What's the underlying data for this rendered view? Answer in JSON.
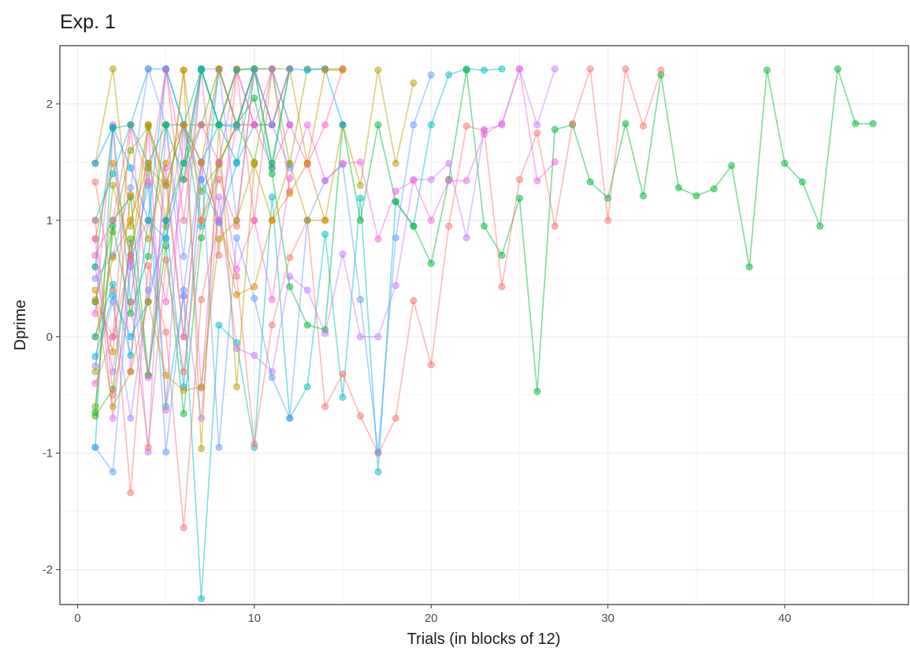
{
  "chart_data": {
    "type": "line",
    "title": "Exp. 1",
    "xlabel": "Trials (in blocks of 12)",
    "ylabel": "Dprime",
    "xlim": [
      -1,
      47
    ],
    "ylim": [
      -2.3,
      2.5
    ],
    "x_ticks": [
      0,
      10,
      20,
      30,
      40
    ],
    "y_ticks": [
      -2,
      -1,
      0,
      1,
      2
    ],
    "grid": true,
    "legend": "none",
    "markers": true,
    "series": [
      {
        "color": "#00BFC4",
        "x": [
          1,
          2,
          3,
          4,
          5,
          6,
          7,
          8,
          9,
          10,
          11,
          12,
          13,
          14,
          15,
          16,
          17,
          18,
          19,
          20,
          21,
          22,
          23,
          24
        ],
        "y": [
          -0.95,
          1.8,
          0.3,
          1.45,
          -0.6,
          0.35,
          -2.25,
          0.1,
          -0.05,
          -0.95,
          1.2,
          -0.7,
          -0.43,
          0.88,
          -0.52,
          1.19,
          -1.16,
          1.16,
          0.95,
          1.82,
          2.25,
          2.3,
          2.29,
          2.3
        ]
      },
      {
        "color": "#00BA38",
        "x": [
          1,
          2,
          3,
          4,
          5,
          6,
          7,
          8,
          9,
          10,
          11,
          12,
          13,
          14,
          15,
          16,
          17,
          18,
          19,
          20,
          21,
          22,
          23,
          24,
          25,
          26,
          27,
          28,
          29,
          30,
          31,
          32,
          33,
          34,
          35,
          36,
          37,
          38,
          39,
          40,
          41,
          42,
          43,
          44,
          45
        ],
        "y": [
          -0.65,
          1.0,
          1.2,
          -0.33,
          0.78,
          -0.66,
          0.85,
          1.49,
          1.82,
          2.05,
          1.4,
          0.43,
          0.1,
          0.06,
          1.82,
          1.0,
          1.82,
          1.16,
          0.95,
          0.63,
          1.35,
          2.29,
          0.95,
          0.7,
          1.19,
          -0.47,
          1.78,
          1.82,
          1.33,
          1.19,
          1.83,
          1.21,
          2.25,
          1.28,
          1.21,
          1.27,
          1.47,
          0.6,
          2.29,
          1.49,
          1.33,
          0.95,
          2.3,
          1.83,
          1.83
        ]
      },
      {
        "color": "#F8766D",
        "x": [
          1,
          2,
          3,
          4,
          5,
          6,
          7,
          8,
          9,
          10,
          11,
          12,
          13,
          14,
          15,
          16,
          17,
          18,
          19,
          20,
          21,
          22,
          23,
          24,
          25,
          26,
          27,
          28,
          29,
          30,
          31,
          32,
          33
        ],
        "y": [
          1.33,
          0.4,
          -1.34,
          0.61,
          0.04,
          -1.64,
          0.32,
          1.0,
          0.52,
          -0.92,
          0.1,
          0.68,
          1.0,
          -0.6,
          -0.32,
          -0.68,
          -1.0,
          -0.7,
          0.31,
          -0.24,
          0.95,
          1.81,
          1.77,
          0.43,
          1.35,
          1.75,
          0.95,
          1.83,
          2.3,
          1.0,
          2.3,
          1.81,
          2.29
        ]
      },
      {
        "color": "#C77CFF",
        "x": [
          1,
          2,
          3,
          4,
          5,
          6,
          7,
          8,
          9,
          10,
          11,
          12,
          13,
          14,
          15,
          16,
          17,
          18,
          19,
          20,
          21,
          22,
          23,
          24,
          25,
          26,
          27
        ],
        "y": [
          0.6,
          -0.3,
          0.8,
          -0.99,
          1.82,
          0.35,
          -0.7,
          1.2,
          -0.1,
          -0.16,
          -0.3,
          0.52,
          0.4,
          0.03,
          0.71,
          0.0,
          0.0,
          0.44,
          1.35,
          1.35,
          1.49,
          0.85,
          1.78,
          1.82,
          2.3,
          1.82,
          2.3
        ]
      },
      {
        "color": "#619CFF",
        "x": [
          1,
          2,
          3,
          4,
          5,
          6,
          7,
          8,
          9,
          10,
          11,
          12,
          13,
          14,
          15,
          16,
          17,
          18,
          19,
          20
        ],
        "y": [
          -0.95,
          -1.16,
          0.6,
          1.3,
          -0.99,
          0.4,
          1.5,
          -0.95,
          0.85,
          0.33,
          -0.35,
          -0.7,
          1.0,
          1.34,
          1.48,
          0.32,
          -0.99,
          0.85,
          1.82,
          2.25
        ]
      },
      {
        "color": "#F564E3",
        "x": [
          1,
          2,
          3,
          4,
          5,
          6,
          7,
          8,
          9,
          10,
          11,
          12,
          13,
          14,
          15,
          16,
          17,
          18,
          19,
          20,
          21,
          22,
          23,
          24,
          25,
          26,
          27
        ],
        "y": [
          0.2,
          1.82,
          -0.3,
          1.82,
          -0.63,
          1.82,
          -0.44,
          1.5,
          0.58,
          1.0,
          0.32,
          1.36,
          1.82,
          1.34,
          1.49,
          1.5,
          0.84,
          1.25,
          1.34,
          1.0,
          1.34,
          1.34,
          1.74,
          1.83,
          2.3,
          1.34,
          1.5
        ]
      },
      {
        "color": "#B79F00",
        "x": [
          1,
          2,
          3,
          4,
          5,
          6,
          7,
          8,
          9,
          10,
          11,
          12,
          13,
          14,
          15,
          16,
          17,
          18,
          19
        ],
        "y": [
          1.49,
          2.3,
          0.95,
          1.82,
          1.0,
          2.29,
          -0.96,
          1.82,
          -0.43,
          1.48,
          1.0,
          1.49,
          1.0,
          1.0,
          1.82,
          1.3,
          2.29,
          1.49,
          2.18
        ]
      },
      {
        "color": "#FF6C91",
        "x": [
          1,
          2,
          3,
          4,
          5,
          6,
          7,
          8,
          9,
          10,
          11,
          12
        ],
        "y": [
          0.3,
          0.0,
          1.82,
          0.3,
          2.3,
          1.0,
          2.29,
          0.7,
          2.29,
          1.0,
          2.3,
          1.25
        ]
      },
      {
        "color": "#E38900",
        "x": [
          1,
          2,
          3,
          4,
          5,
          6,
          7,
          8,
          9,
          10,
          11,
          12,
          13,
          14
        ],
        "y": [
          0.84,
          1.49,
          0.66,
          1.82,
          1.33,
          0.0,
          1.5,
          1.0,
          0.36,
          0.43,
          1.0,
          1.23,
          1.49,
          1.0
        ]
      },
      {
        "color": "#7CAE00",
        "x": [
          1,
          2,
          3,
          4,
          5,
          6,
          7,
          8,
          9,
          10,
          11,
          12,
          13,
          14,
          15
        ],
        "y": [
          -0.6,
          0.9,
          1.6,
          1.8,
          1.3,
          1.82,
          1.25,
          1.48,
          1.82,
          1.5,
          2.3,
          1.48,
          2.3,
          2.3,
          2.3
        ]
      },
      {
        "color": "#00BFC4",
        "x": [
          1,
          2,
          3,
          4,
          5,
          6,
          7,
          8,
          9,
          10,
          11,
          12
        ],
        "y": [
          1.0,
          1.4,
          1.82,
          2.3,
          2.3,
          1.82,
          0.95,
          2.3,
          1.82,
          2.3,
          2.3,
          1.82
        ]
      },
      {
        "color": "#00A9FF",
        "x": [
          1,
          2,
          3,
          4,
          5,
          6,
          7,
          8,
          9,
          10,
          11,
          12,
          13,
          14,
          15
        ],
        "y": [
          1.49,
          1.8,
          1.45,
          1.0,
          2.3,
          1.82,
          1.5,
          1.82,
          1.8,
          2.3,
          1.82,
          2.3,
          2.29,
          2.3,
          1.82
        ]
      },
      {
        "color": "#8494FF",
        "x": [
          1,
          2,
          3,
          4,
          5,
          6,
          7,
          8,
          9,
          10,
          11,
          12
        ],
        "y": [
          0.5,
          0.7,
          1.28,
          2.3,
          1.82,
          0.69,
          2.3,
          2.3,
          1.0,
          2.29,
          1.82,
          1.45
        ]
      },
      {
        "color": "#FF61C3",
        "x": [
          1,
          2,
          3,
          4,
          5,
          6,
          7,
          8,
          9,
          10,
          11,
          12,
          13,
          14,
          15
        ],
        "y": [
          0.7,
          1.0,
          1.82,
          1.33,
          2.29,
          1.49,
          2.3,
          1.82,
          2.3,
          1.82,
          1.45,
          1.82,
          1.48,
          1.82,
          2.3
        ]
      },
      {
        "color": "#00C08B",
        "x": [
          1,
          2,
          3,
          4,
          5,
          6,
          7,
          8,
          9,
          10,
          11,
          12
        ],
        "y": [
          0.6,
          1.79,
          1.82,
          1.49,
          1.82,
          1.82,
          2.3,
          1.82,
          1.5,
          2.3,
          1.45,
          2.3
        ]
      },
      {
        "color": "#D89000",
        "x": [
          1,
          2,
          3,
          4,
          5,
          6,
          7,
          8,
          9,
          10,
          11,
          12,
          13,
          14,
          15
        ],
        "y": [
          0.0,
          0.68,
          1.0,
          1.49,
          0.95,
          2.29,
          1.0,
          1.49,
          1.82,
          1.82,
          1.82,
          2.3,
          1.49,
          2.29,
          2.29
        ]
      },
      {
        "color": "#A3A500",
        "x": [
          1,
          2,
          3,
          4,
          5,
          6,
          7,
          8,
          9,
          10,
          11,
          12
        ],
        "y": [
          -0.3,
          1.3,
          0.7,
          1.45,
          1.3,
          1.82,
          1.82,
          1.82,
          2.3,
          2.3,
          2.3,
          2.3
        ]
      },
      {
        "color": "#39B600",
        "x": [
          1,
          2,
          3,
          4,
          5,
          6,
          7,
          8,
          9,
          10
        ],
        "y": [
          -0.68,
          -0.45,
          0.84,
          -0.33,
          1.0,
          1.49,
          1.82,
          2.3,
          1.82,
          2.3
        ]
      },
      {
        "color": "#00B0F6",
        "x": [
          1,
          2,
          3,
          4,
          5,
          6,
          7,
          8,
          9,
          10,
          11
        ],
        "y": [
          -0.17,
          0.35,
          0.0,
          0.3,
          1.0,
          -0.43,
          1.35,
          0.98,
          1.49,
          1.82,
          1.82
        ]
      },
      {
        "color": "#E76BF3",
        "x": [
          1,
          2,
          3,
          4,
          5,
          6,
          7,
          8,
          9,
          10,
          11,
          12
        ],
        "y": [
          0.84,
          -0.7,
          0.65,
          -0.35,
          1.45,
          0.0,
          1.5,
          1.0,
          1.82,
          1.82,
          2.3,
          1.82
        ]
      },
      {
        "color": "#FD61D1",
        "x": [
          1,
          2,
          3,
          4,
          5,
          6,
          7,
          8,
          9,
          10
        ],
        "y": [
          -0.4,
          0.0,
          0.7,
          1.0,
          0.3,
          1.35,
          1.82,
          1.5,
          2.29,
          1.82
        ]
      },
      {
        "color": "#F8766D",
        "x": [
          1,
          2,
          3,
          4,
          5,
          6,
          7,
          8,
          9,
          10,
          11,
          12
        ],
        "y": [
          1.0,
          -0.5,
          0.3,
          -0.95,
          0.66,
          -0.3,
          1.0,
          1.35,
          0.95,
          2.3,
          1.82,
          2.3
        ]
      },
      {
        "color": "#00BD5C",
        "x": [
          1,
          2,
          3,
          4,
          5,
          6,
          7,
          8,
          9,
          10,
          11,
          12
        ],
        "y": [
          0.3,
          0.95,
          0.2,
          0.69,
          1.82,
          1.35,
          2.29,
          1.82,
          2.29,
          2.3,
          1.49,
          2.3
        ]
      },
      {
        "color": "#9590FF",
        "x": [
          1,
          2,
          3,
          4,
          5,
          6,
          7,
          8,
          9,
          10,
          11,
          12
        ],
        "y": [
          -0.25,
          0.3,
          -0.7,
          0.4,
          0.85,
          1.82,
          1.35,
          2.29,
          1.82,
          2.3,
          1.82,
          2.3
        ]
      },
      {
        "color": "#DB8E00",
        "x": [
          1,
          2,
          3,
          4,
          5,
          6,
          7,
          8,
          9,
          10
        ],
        "y": [
          0.4,
          -0.13,
          1.22,
          0.84,
          1.49,
          1.82,
          1.49,
          2.3,
          1.82,
          2.3
        ]
      },
      {
        "color": "#00BFC4",
        "x": [
          1,
          2,
          3,
          4,
          5,
          6,
          7,
          8,
          9,
          10
        ],
        "y": [
          0.0,
          0.45,
          -0.16,
          1.0,
          0.84,
          1.49,
          2.3,
          1.82,
          1.82,
          2.3
        ]
      },
      {
        "color": "#C49A00",
        "x": [
          1,
          2,
          3,
          4,
          5,
          6,
          7,
          8,
          9,
          10
        ],
        "y": [
          0.32,
          -0.6,
          -0.3,
          0.3,
          -0.33,
          -0.46,
          -0.43,
          0.84,
          1.0,
          1.49
        ]
      }
    ]
  }
}
